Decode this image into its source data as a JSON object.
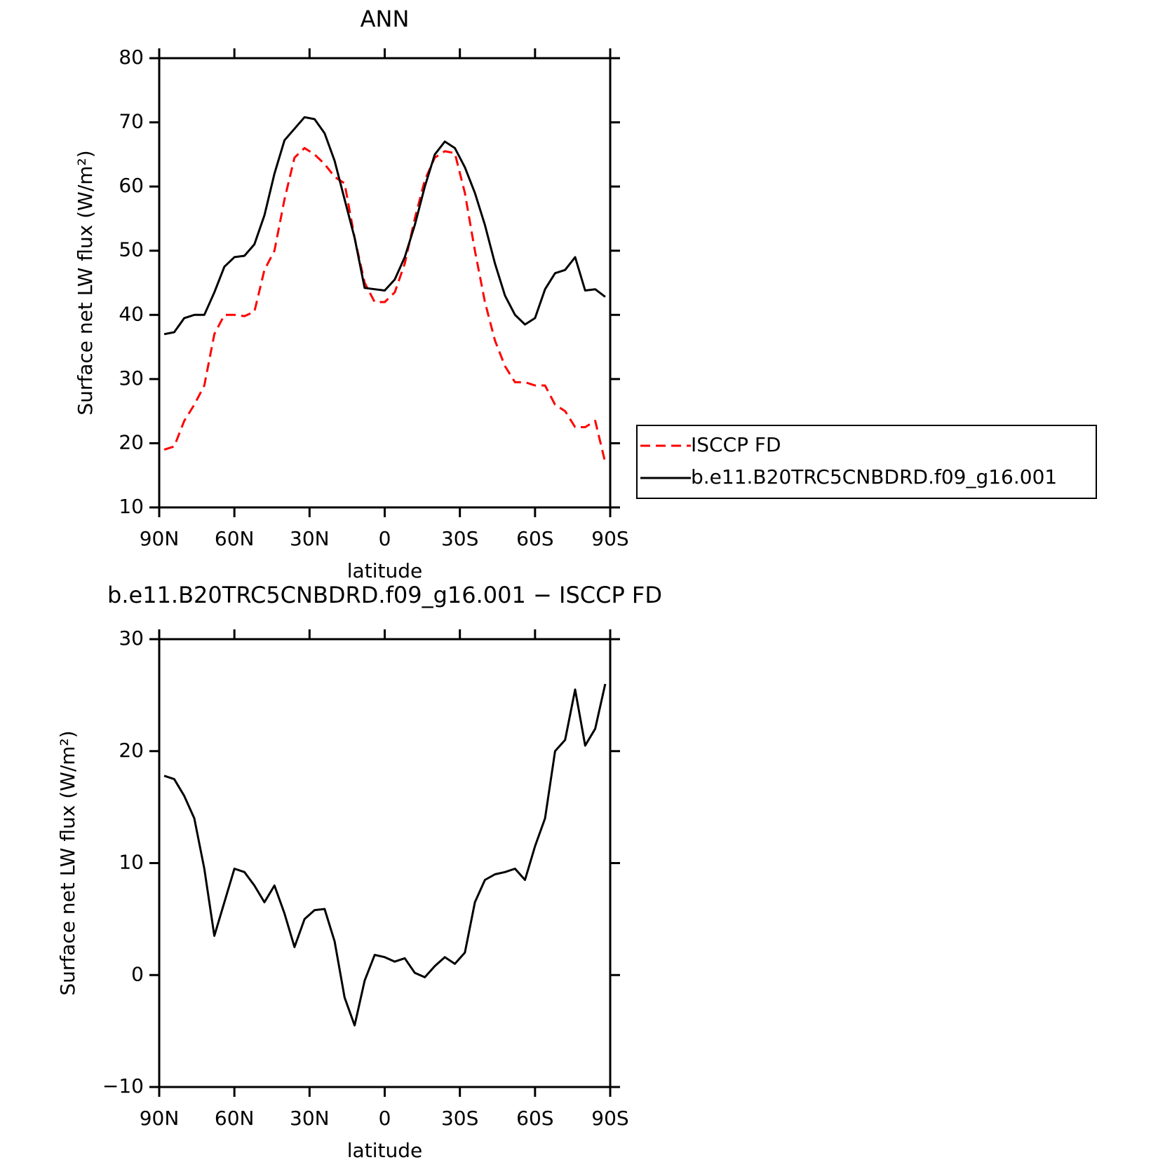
{
  "chart_data": [
    {
      "type": "line",
      "title": "ANN",
      "xlabel": "latitude",
      "ylabel": "Surface net LW flux (W/m²)",
      "x": [
        88,
        84,
        80,
        76,
        72,
        68,
        64,
        60,
        56,
        52,
        48,
        44,
        40,
        36,
        32,
        28,
        24,
        20,
        16,
        12,
        8,
        4,
        0,
        -4,
        -8,
        -12,
        -16,
        -20,
        -24,
        -28,
        -32,
        -36,
        -40,
        -44,
        -48,
        -52,
        -56,
        -60,
        -64,
        -68,
        -72,
        -76,
        -80,
        -84,
        -88
      ],
      "xlim": [
        90,
        -90
      ],
      "xticks": [
        {
          "value": 90,
          "label": "90N"
        },
        {
          "value": 60,
          "label": "60N"
        },
        {
          "value": 30,
          "label": "30N"
        },
        0,
        {
          "value": -30,
          "label": "30S"
        },
        {
          "value": -60,
          "label": "60S"
        },
        {
          "value": -90,
          "label": "90S"
        }
      ],
      "ylim": [
        10,
        80
      ],
      "yticks": [
        10,
        20,
        30,
        40,
        50,
        60,
        70,
        80
      ],
      "legend": "right",
      "series": [
        {
          "name": "ISCCP FD",
          "color": "#ff0000",
          "linestyle": "dashed",
          "values": [
            19,
            19.5,
            23.5,
            26,
            29,
            37,
            40,
            40,
            39.8,
            40.5,
            47,
            50,
            58,
            64.5,
            66,
            65,
            63.5,
            61.5,
            60.5,
            52,
            45,
            42,
            42,
            43.5,
            48,
            55,
            61,
            64.5,
            65.5,
            65.2,
            59,
            50,
            42,
            36,
            32,
            29.5,
            29.5,
            29,
            29,
            26,
            25,
            22.5,
            22.5,
            23.5,
            17
          ]
        },
        {
          "name": "b.e11.B20TRC5CNBDRD.f09_g16.001",
          "color": "#000000",
          "linestyle": "solid",
          "values": [
            37,
            37.3,
            39.5,
            40,
            40,
            43.5,
            47.5,
            49,
            49.2,
            51,
            55.5,
            62,
            67.2,
            69,
            70.8,
            70.5,
            68.3,
            64,
            58,
            52,
            44.2,
            44,
            43.8,
            45.5,
            49,
            54,
            60,
            65,
            67,
            66,
            63,
            59,
            54,
            48,
            43,
            40,
            38.5,
            39.5,
            44,
            46.5,
            47,
            49,
            43.8,
            44,
            42.8
          ]
        }
      ]
    },
    {
      "type": "line",
      "title": "b.e11.B20TRC5CNBDRD.f09_g16.001 − ISCCP FD",
      "xlabel": "latitude",
      "ylabel": "Surface net LW flux (W/m²)",
      "x": [
        88,
        84,
        80,
        76,
        72,
        68,
        64,
        60,
        56,
        52,
        48,
        44,
        40,
        36,
        32,
        28,
        24,
        20,
        16,
        12,
        8,
        4,
        0,
        -4,
        -8,
        -12,
        -16,
        -20,
        -24,
        -28,
        -32,
        -36,
        -40,
        -44,
        -48,
        -52,
        -56,
        -60,
        -64,
        -68,
        -72,
        -76,
        -80,
        -84,
        -88
      ],
      "xlim": [
        90,
        -90
      ],
      "xticks": [
        {
          "value": 90,
          "label": "90N"
        },
        {
          "value": 60,
          "label": "60N"
        },
        {
          "value": 30,
          "label": "30N"
        },
        0,
        {
          "value": -30,
          "label": "30S"
        },
        {
          "value": -60,
          "label": "60S"
        },
        {
          "value": -90,
          "label": "90S"
        }
      ],
      "ylim": [
        -10,
        30
      ],
      "yticks": [
        {
          "value": -10,
          "label": "−10"
        },
        0,
        10,
        20,
        30
      ],
      "series": [
        {
          "color": "#000000",
          "linestyle": "solid",
          "values": [
            17.8,
            17.5,
            16,
            14,
            9.5,
            3.5,
            6.5,
            9.5,
            9.2,
            8,
            6.5,
            8,
            5.5,
            2.5,
            5,
            5.8,
            5.9,
            3,
            -2,
            -4.5,
            -0.5,
            1.8,
            1.6,
            1.2,
            1.5,
            0.2,
            -0.2,
            0.8,
            1.6,
            1,
            2,
            6.5,
            8.5,
            9,
            9.2,
            9.5,
            8.5,
            11.5,
            14,
            20,
            21,
            25.5,
            20.5,
            22,
            26
          ]
        }
      ]
    }
  ]
}
